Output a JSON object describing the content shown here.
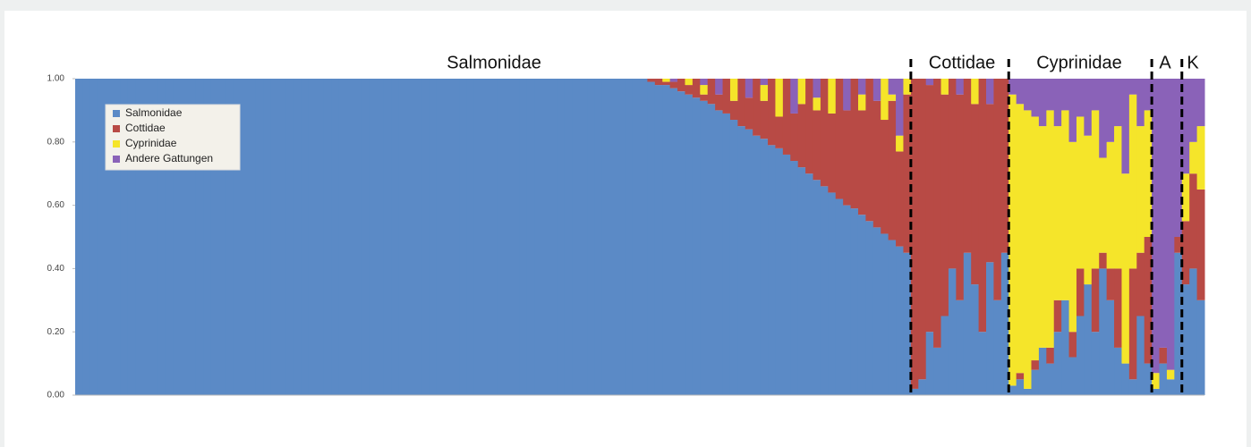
{
  "chart_data": {
    "type": "stacked-bar",
    "annotations": [
      "Salmonidae",
      "Cottidae",
      "Cyprinidae",
      "A",
      "K"
    ],
    "ylim": [
      0,
      1
    ],
    "yticks": [
      {
        "value": 0,
        "label": "0.00"
      },
      {
        "value": 0.2,
        "label": "0.20"
      },
      {
        "value": 0.4,
        "label": "0.40"
      },
      {
        "value": 0.6,
        "label": "0.60"
      },
      {
        "value": 0.8,
        "label": "0.80"
      },
      {
        "value": 1,
        "label": "1.00"
      }
    ],
    "series": [
      {
        "name": "Salmonidae",
        "color": "#5b8ac6",
        "values": [
          1,
          1,
          1,
          1,
          1,
          1,
          1,
          1,
          1,
          1,
          1,
          1,
          1,
          1,
          1,
          1,
          1,
          1,
          1,
          1,
          1,
          1,
          1,
          1,
          1,
          1,
          1,
          1,
          1,
          1,
          1,
          1,
          1,
          1,
          1,
          1,
          1,
          1,
          1,
          1,
          1,
          1,
          1,
          1,
          1,
          1,
          1,
          1,
          1,
          1,
          1,
          1,
          1,
          1,
          1,
          1,
          1,
          1,
          1,
          1,
          1,
          1,
          1,
          1,
          1,
          1,
          1,
          1,
          1,
          1,
          1,
          1,
          1,
          1,
          1,
          1,
          0.99,
          0.98,
          0.98,
          0.97,
          0.96,
          0.95,
          0.94,
          0.93,
          0.92,
          0.9,
          0.89,
          0.87,
          0.85,
          0.84,
          0.82,
          0.81,
          0.79,
          0.78,
          0.76,
          0.74,
          0.72,
          0.7,
          0.68,
          0.66,
          0.64,
          0.62,
          0.6,
          0.59,
          0.57,
          0.55,
          0.53,
          0.51,
          0.49,
          0.47,
          0.45,
          0.02,
          0.05,
          0.2,
          0.15,
          0.25,
          0.4,
          0.3,
          0.45,
          0.35,
          0.2,
          0.42,
          0.3,
          0.45,
          0.03,
          0.05,
          0.02,
          0.08,
          0.15,
          0.1,
          0.2,
          0.3,
          0.12,
          0.25,
          0.35,
          0.2,
          0.4,
          0.3,
          0.15,
          0.1,
          0.05,
          0.25,
          0.1,
          0.02,
          0.1,
          0.05,
          0.45,
          0.35,
          0.4,
          0.3
        ]
      },
      {
        "name": "Cottidae",
        "color": "#b84a45",
        "values": [
          0,
          0,
          0,
          0,
          0,
          0,
          0,
          0,
          0,
          0,
          0,
          0,
          0,
          0,
          0,
          0,
          0,
          0,
          0,
          0,
          0,
          0,
          0,
          0,
          0,
          0,
          0,
          0,
          0,
          0,
          0,
          0,
          0,
          0,
          0,
          0,
          0,
          0,
          0,
          0,
          0,
          0,
          0,
          0,
          0,
          0,
          0,
          0,
          0,
          0,
          0,
          0,
          0,
          0,
          0,
          0,
          0,
          0,
          0,
          0,
          0,
          0,
          0,
          0,
          0,
          0,
          0,
          0,
          0,
          0,
          0,
          0,
          0,
          0,
          0,
          0,
          0.01,
          0.02,
          0.01,
          0.02,
          0.04,
          0.03,
          0.06,
          0.02,
          0.08,
          0.05,
          0.11,
          0.06,
          0.15,
          0.1,
          0.18,
          0.12,
          0.21,
          0.1,
          0.24,
          0.15,
          0.2,
          0.3,
          0.22,
          0.34,
          0.25,
          0.38,
          0.3,
          0.41,
          0.33,
          0.45,
          0.4,
          0.36,
          0.44,
          0.3,
          0.5,
          0.98,
          0.95,
          0.78,
          0.85,
          0.7,
          0.6,
          0.65,
          0.55,
          0.57,
          0.8,
          0.5,
          0.7,
          0.55,
          0,
          0.02,
          0,
          0.03,
          0,
          0.05,
          0.1,
          0,
          0.08,
          0.15,
          0,
          0.2,
          0.05,
          0.1,
          0.25,
          0,
          0.35,
          0.2,
          0.4,
          0,
          0.05,
          0,
          0.05,
          0.2,
          0.3,
          0.35
        ]
      },
      {
        "name": "Cyprinidae",
        "color": "#f5e52a",
        "values": [
          0,
          0,
          0,
          0,
          0,
          0,
          0,
          0,
          0,
          0,
          0,
          0,
          0,
          0,
          0,
          0,
          0,
          0,
          0,
          0,
          0,
          0,
          0,
          0,
          0,
          0,
          0,
          0,
          0,
          0,
          0,
          0,
          0,
          0,
          0,
          0,
          0,
          0,
          0,
          0,
          0,
          0,
          0,
          0,
          0,
          0,
          0,
          0,
          0,
          0,
          0,
          0,
          0,
          0,
          0,
          0,
          0,
          0,
          0,
          0,
          0,
          0,
          0,
          0,
          0,
          0,
          0,
          0,
          0,
          0,
          0,
          0,
          0,
          0,
          0,
          0,
          0,
          0,
          0.01,
          0,
          0,
          0.02,
          0,
          0.03,
          0,
          0,
          0,
          0.07,
          0,
          0,
          0,
          0.05,
          0,
          0.12,
          0,
          0,
          0.08,
          0,
          0.04,
          0,
          0.11,
          0,
          0,
          0,
          0.05,
          0,
          0,
          0.13,
          0.02,
          0.05,
          0.05,
          0,
          0,
          0,
          0,
          0.05,
          0,
          0,
          0,
          0.08,
          0,
          0,
          0,
          0,
          0.92,
          0.85,
          0.88,
          0.77,
          0.7,
          0.75,
          0.55,
          0.6,
          0.6,
          0.48,
          0.47,
          0.5,
          0.3,
          0.4,
          0.45,
          0.6,
          0.55,
          0.4,
          0.4,
          0.05,
          0,
          0.03,
          0,
          0.15,
          0.1,
          0.2
        ]
      },
      {
        "name": "Andere Gattungen",
        "color": "#8a62b8",
        "values": [
          0,
          0,
          0,
          0,
          0,
          0,
          0,
          0,
          0,
          0,
          0,
          0,
          0,
          0,
          0,
          0,
          0,
          0,
          0,
          0,
          0,
          0,
          0,
          0,
          0,
          0,
          0,
          0,
          0,
          0,
          0,
          0,
          0,
          0,
          0,
          0,
          0,
          0,
          0,
          0,
          0,
          0,
          0,
          0,
          0,
          0,
          0,
          0,
          0,
          0,
          0,
          0,
          0,
          0,
          0,
          0,
          0,
          0,
          0,
          0,
          0,
          0,
          0,
          0,
          0,
          0,
          0,
          0,
          0,
          0,
          0,
          0,
          0,
          0,
          0,
          0,
          0,
          0,
          0,
          0.01,
          0,
          0,
          0,
          0.02,
          0,
          0.05,
          0,
          0,
          0,
          0.06,
          0,
          0.02,
          0,
          0,
          0,
          0.11,
          0,
          0,
          0.06,
          0,
          0,
          0,
          0.1,
          0,
          0.05,
          0,
          0.07,
          0,
          0.05,
          0.18,
          0,
          0,
          0,
          0.02,
          0,
          0,
          0,
          0.05,
          0,
          0,
          0,
          0.08,
          0,
          0,
          0.05,
          0.08,
          0.1,
          0.12,
          0.15,
          0.1,
          0.15,
          0.1,
          0.2,
          0.12,
          0.18,
          0.1,
          0.25,
          0.2,
          0.15,
          0.3,
          0.05,
          0.15,
          0.1,
          0.93,
          0.85,
          0.92,
          0.5,
          0.3,
          0.2,
          0.15
        ]
      }
    ]
  }
}
